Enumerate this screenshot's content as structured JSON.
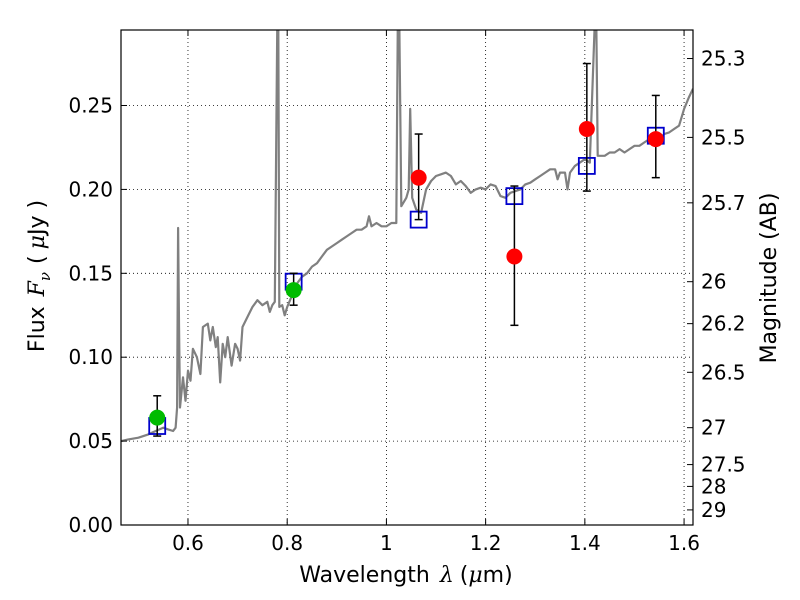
{
  "chart_data": {
    "type": "line",
    "title": "",
    "xlabel": "Wavelength",
    "xlabel_symbol": "λ",
    "xlabel_unit_open": "(",
    "xlabel_unit_mu": "μ",
    "xlabel_unit_rest": "m)",
    "ylabel": "Flux",
    "ylabel_symbol": "F",
    "ylabel_subscript": "ν",
    "ylabel_unit_open": "(",
    "ylabel_unit_mu": "μ",
    "ylabel_unit_rest": "Jy )",
    "y2label": "Magnitude (AB)",
    "xlim": [
      0.465,
      1.618
    ],
    "ylim": [
      0.0,
      0.295
    ],
    "grid": true,
    "x_ticks": [
      0.6,
      0.8,
      1.0,
      1.2,
      1.4,
      1.6
    ],
    "x_tick_labels": [
      "0.6",
      "0.8",
      "1",
      "1.2",
      "1.4",
      "1.6"
    ],
    "y_ticks": [
      0.0,
      0.05,
      0.1,
      0.15,
      0.2,
      0.25
    ],
    "y_tick_labels": [
      "0.00",
      "0.05",
      "0.10",
      "0.15",
      "0.20",
      "0.25"
    ],
    "y2_ticks": [
      {
        "label": "25.3",
        "flux": 0.278
      },
      {
        "label": "25.5",
        "flux": 0.231
      },
      {
        "label": "25.7",
        "flux": 0.192
      },
      {
        "label": "26",
        "flux": 0.145
      },
      {
        "label": "26.2",
        "flux": 0.12
      },
      {
        "label": "26.5",
        "flux": 0.091
      },
      {
        "label": "27",
        "flux": 0.058
      },
      {
        "label": "27.5",
        "flux": 0.036
      },
      {
        "label": "28",
        "flux": 0.023
      },
      {
        "label": "29",
        "flux": 0.009
      }
    ],
    "series": [
      {
        "name": "model spectrum",
        "kind": "line",
        "color": "#808080",
        "points": [
          [
            0.465,
            0.05
          ],
          [
            0.48,
            0.051
          ],
          [
            0.5,
            0.052
          ],
          [
            0.52,
            0.054
          ],
          [
            0.535,
            0.056
          ],
          [
            0.55,
            0.058
          ],
          [
            0.56,
            0.057
          ],
          [
            0.57,
            0.056
          ],
          [
            0.575,
            0.058
          ],
          [
            0.578,
            0.07
          ],
          [
            0.58,
            0.177
          ],
          [
            0.582,
            0.12
          ],
          [
            0.584,
            0.07
          ],
          [
            0.59,
            0.088
          ],
          [
            0.595,
            0.074
          ],
          [
            0.6,
            0.092
          ],
          [
            0.605,
            0.086
          ],
          [
            0.61,
            0.105
          ],
          [
            0.618,
            0.1
          ],
          [
            0.625,
            0.09
          ],
          [
            0.63,
            0.118
          ],
          [
            0.64,
            0.12
          ],
          [
            0.645,
            0.11
          ],
          [
            0.65,
            0.118
          ],
          [
            0.656,
            0.106
          ],
          [
            0.66,
            0.112
          ],
          [
            0.665,
            0.085
          ],
          [
            0.67,
            0.108
          ],
          [
            0.675,
            0.1
          ],
          [
            0.68,
            0.112
          ],
          [
            0.688,
            0.095
          ],
          [
            0.695,
            0.108
          ],
          [
            0.7,
            0.105
          ],
          [
            0.705,
            0.098
          ],
          [
            0.71,
            0.118
          ],
          [
            0.72,
            0.124
          ],
          [
            0.73,
            0.13
          ],
          [
            0.74,
            0.134
          ],
          [
            0.75,
            0.131
          ],
          [
            0.76,
            0.133
          ],
          [
            0.765,
            0.127
          ],
          [
            0.77,
            0.131
          ],
          [
            0.775,
            0.133
          ],
          [
            0.78,
            0.3
          ],
          [
            0.782,
            0.3
          ],
          [
            0.784,
            0.13
          ],
          [
            0.79,
            0.131
          ],
          [
            0.795,
            0.125
          ],
          [
            0.8,
            0.13
          ],
          [
            0.81,
            0.137
          ],
          [
            0.82,
            0.144
          ],
          [
            0.83,
            0.148
          ],
          [
            0.84,
            0.15
          ],
          [
            0.85,
            0.154
          ],
          [
            0.86,
            0.156
          ],
          [
            0.87,
            0.16
          ],
          [
            0.88,
            0.164
          ],
          [
            0.89,
            0.166
          ],
          [
            0.9,
            0.168
          ],
          [
            0.91,
            0.17
          ],
          [
            0.92,
            0.172
          ],
          [
            0.93,
            0.174
          ],
          [
            0.94,
            0.176
          ],
          [
            0.95,
            0.176
          ],
          [
            0.96,
            0.178
          ],
          [
            0.965,
            0.184
          ],
          [
            0.97,
            0.178
          ],
          [
            0.98,
            0.18
          ],
          [
            0.99,
            0.178
          ],
          [
            1.0,
            0.178
          ],
          [
            1.01,
            0.18
          ],
          [
            1.02,
            0.18
          ],
          [
            1.023,
            0.3
          ],
          [
            1.026,
            0.3
          ],
          [
            1.03,
            0.19
          ],
          [
            1.04,
            0.195
          ],
          [
            1.045,
            0.2
          ],
          [
            1.048,
            0.248
          ],
          [
            1.052,
            0.195
          ],
          [
            1.06,
            0.188
          ],
          [
            1.07,
            0.186
          ],
          [
            1.08,
            0.2
          ],
          [
            1.09,
            0.205
          ],
          [
            1.1,
            0.208
          ],
          [
            1.11,
            0.209
          ],
          [
            1.12,
            0.21
          ],
          [
            1.13,
            0.208
          ],
          [
            1.14,
            0.203
          ],
          [
            1.15,
            0.205
          ],
          [
            1.16,
            0.202
          ],
          [
            1.17,
            0.198
          ],
          [
            1.18,
            0.2
          ],
          [
            1.19,
            0.201
          ],
          [
            1.2,
            0.2
          ],
          [
            1.21,
            0.203
          ],
          [
            1.22,
            0.202
          ],
          [
            1.23,
            0.196
          ],
          [
            1.24,
            0.195
          ],
          [
            1.25,
            0.198
          ],
          [
            1.26,
            0.199
          ],
          [
            1.27,
            0.2
          ],
          [
            1.28,
            0.203
          ],
          [
            1.29,
            0.204
          ],
          [
            1.3,
            0.206
          ],
          [
            1.31,
            0.208
          ],
          [
            1.32,
            0.21
          ],
          [
            1.33,
            0.212
          ],
          [
            1.34,
            0.212
          ],
          [
            1.345,
            0.206
          ],
          [
            1.35,
            0.21
          ],
          [
            1.36,
            0.21
          ],
          [
            1.365,
            0.2
          ],
          [
            1.37,
            0.21
          ],
          [
            1.38,
            0.214
          ],
          [
            1.39,
            0.216
          ],
          [
            1.4,
            0.218
          ],
          [
            1.41,
            0.216
          ],
          [
            1.42,
            0.3
          ],
          [
            1.423,
            0.3
          ],
          [
            1.426,
            0.22
          ],
          [
            1.44,
            0.22
          ],
          [
            1.45,
            0.222
          ],
          [
            1.46,
            0.222
          ],
          [
            1.47,
            0.224
          ],
          [
            1.48,
            0.222
          ],
          [
            1.49,
            0.224
          ],
          [
            1.5,
            0.226
          ],
          [
            1.51,
            0.226
          ],
          [
            1.52,
            0.228
          ],
          [
            1.53,
            0.23
          ],
          [
            1.54,
            0.232
          ],
          [
            1.55,
            0.23
          ],
          [
            1.56,
            0.233
          ],
          [
            1.57,
            0.234
          ],
          [
            1.58,
            0.236
          ],
          [
            1.59,
            0.238
          ],
          [
            1.6,
            0.248
          ],
          [
            1.61,
            0.255
          ],
          [
            1.618,
            0.26
          ]
        ]
      },
      {
        "name": "green observations",
        "kind": "scatter",
        "color": "#00bb00",
        "points": [
          {
            "x": 0.538,
            "y": 0.064,
            "yerr_low": 0.053,
            "yerr_high": 0.077
          },
          {
            "x": 0.813,
            "y": 0.14,
            "yerr_low": 0.131,
            "yerr_high": 0.15
          }
        ]
      },
      {
        "name": "red observations",
        "kind": "scatter",
        "color": "#ff0000",
        "points": [
          {
            "x": 1.065,
            "y": 0.207,
            "yerr_low": 0.182,
            "yerr_high": 0.233
          },
          {
            "x": 1.258,
            "y": 0.16,
            "yerr_low": 0.119,
            "yerr_high": 0.202
          },
          {
            "x": 1.404,
            "y": 0.236,
            "yerr_low": 0.199,
            "yerr_high": 0.275
          },
          {
            "x": 1.543,
            "y": 0.23,
            "yerr_low": 0.207,
            "yerr_high": 0.256
          }
        ]
      },
      {
        "name": "model synthetic photometry",
        "kind": "marker",
        "color": "#0000cc",
        "points": [
          {
            "x": 0.538,
            "y": 0.059
          },
          {
            "x": 0.813,
            "y": 0.145
          },
          {
            "x": 1.065,
            "y": 0.182
          },
          {
            "x": 1.258,
            "y": 0.196
          },
          {
            "x": 1.404,
            "y": 0.214
          },
          {
            "x": 1.543,
            "y": 0.232
          }
        ]
      }
    ]
  }
}
